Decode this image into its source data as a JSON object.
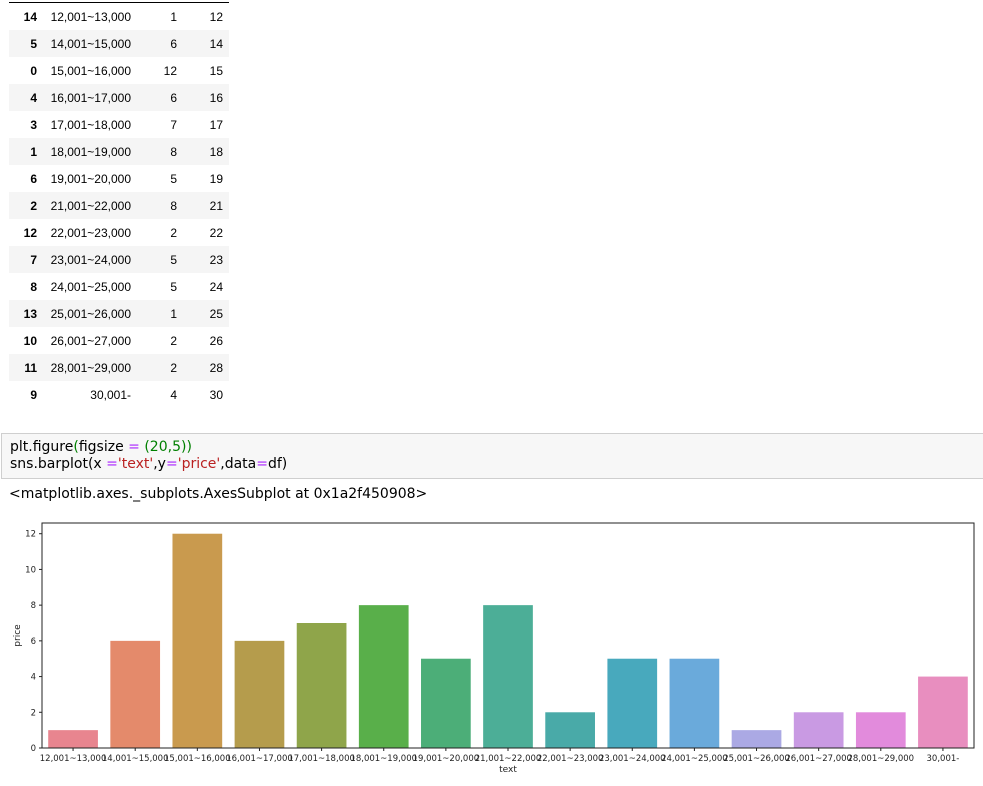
{
  "table": {
    "rows": [
      {
        "index": "14",
        "text": "12,001~13,000",
        "price": "1",
        "min": "12"
      },
      {
        "index": "5",
        "text": "14,001~15,000",
        "price": "6",
        "min": "14"
      },
      {
        "index": "0",
        "text": "15,001~16,000",
        "price": "12",
        "min": "15"
      },
      {
        "index": "4",
        "text": "16,001~17,000",
        "price": "6",
        "min": "16"
      },
      {
        "index": "3",
        "text": "17,001~18,000",
        "price": "7",
        "min": "17"
      },
      {
        "index": "1",
        "text": "18,001~19,000",
        "price": "8",
        "min": "18"
      },
      {
        "index": "6",
        "text": "19,001~20,000",
        "price": "5",
        "min": "19"
      },
      {
        "index": "2",
        "text": "21,001~22,000",
        "price": "8",
        "min": "21"
      },
      {
        "index": "12",
        "text": "22,001~23,000",
        "price": "2",
        "min": "22"
      },
      {
        "index": "7",
        "text": "23,001~24,000",
        "price": "5",
        "min": "23"
      },
      {
        "index": "8",
        "text": "24,001~25,000",
        "price": "5",
        "min": "24"
      },
      {
        "index": "13",
        "text": "25,001~26,000",
        "price": "1",
        "min": "25"
      },
      {
        "index": "10",
        "text": "26,001~27,000",
        "price": "2",
        "min": "26"
      },
      {
        "index": "11",
        "text": "28,001~29,000",
        "price": "2",
        "min": "28"
      },
      {
        "index": "9",
        "text": "30,001-",
        "price": "4",
        "min": "30"
      }
    ]
  },
  "code": {
    "line1": {
      "a": "plt.figure",
      "b": "(",
      "c": "figsize",
      "d": " = ",
      "e": "(",
      "f": "20",
      "g": ",",
      "h": "5",
      "i": "))"
    },
    "line2": {
      "a": "sns.barplot(x ",
      "b": "=",
      "c": "'text'",
      "d": ",y",
      "e": "=",
      "f": "'price'",
      "g": ",data",
      "h": "=",
      "i": "df)"
    }
  },
  "output_text": "<matplotlib.axes._subplots.AxesSubplot at 0x1a2f450908>",
  "chart_data": {
    "type": "bar",
    "categories": [
      "12,001~13,000",
      "14,001~15,000",
      "15,001~16,000",
      "16,001~17,000",
      "17,001~18,000",
      "18,001~19,000",
      "19,001~20,000",
      "21,001~22,000",
      "22,001~23,000",
      "23,001~24,000",
      "24,001~25,000",
      "25,001~26,000",
      "26,001~27,000",
      "28,001~29,000",
      "30,001-"
    ],
    "values": [
      1,
      6,
      12,
      6,
      7,
      8,
      5,
      8,
      2,
      5,
      5,
      1,
      2,
      2,
      4
    ],
    "colors": [
      "#e8858f",
      "#e48a6b",
      "#c99a4e",
      "#b59c4c",
      "#8fa54a",
      "#59af4a",
      "#4cae78",
      "#4cae97",
      "#49aaa8",
      "#48a9bd",
      "#6aaadb",
      "#aba9e4",
      "#c99ae3",
      "#e28bdc",
      "#e88ebf"
    ],
    "xlabel": "text",
    "ylabel": "price",
    "ylim": [
      0,
      12.6
    ],
    "yticks": [
      "0",
      "2",
      "4",
      "6",
      "8",
      "10",
      "12"
    ],
    "ytick_values": [
      0,
      2,
      4,
      6,
      8,
      10,
      12
    ],
    "grid": false
  }
}
